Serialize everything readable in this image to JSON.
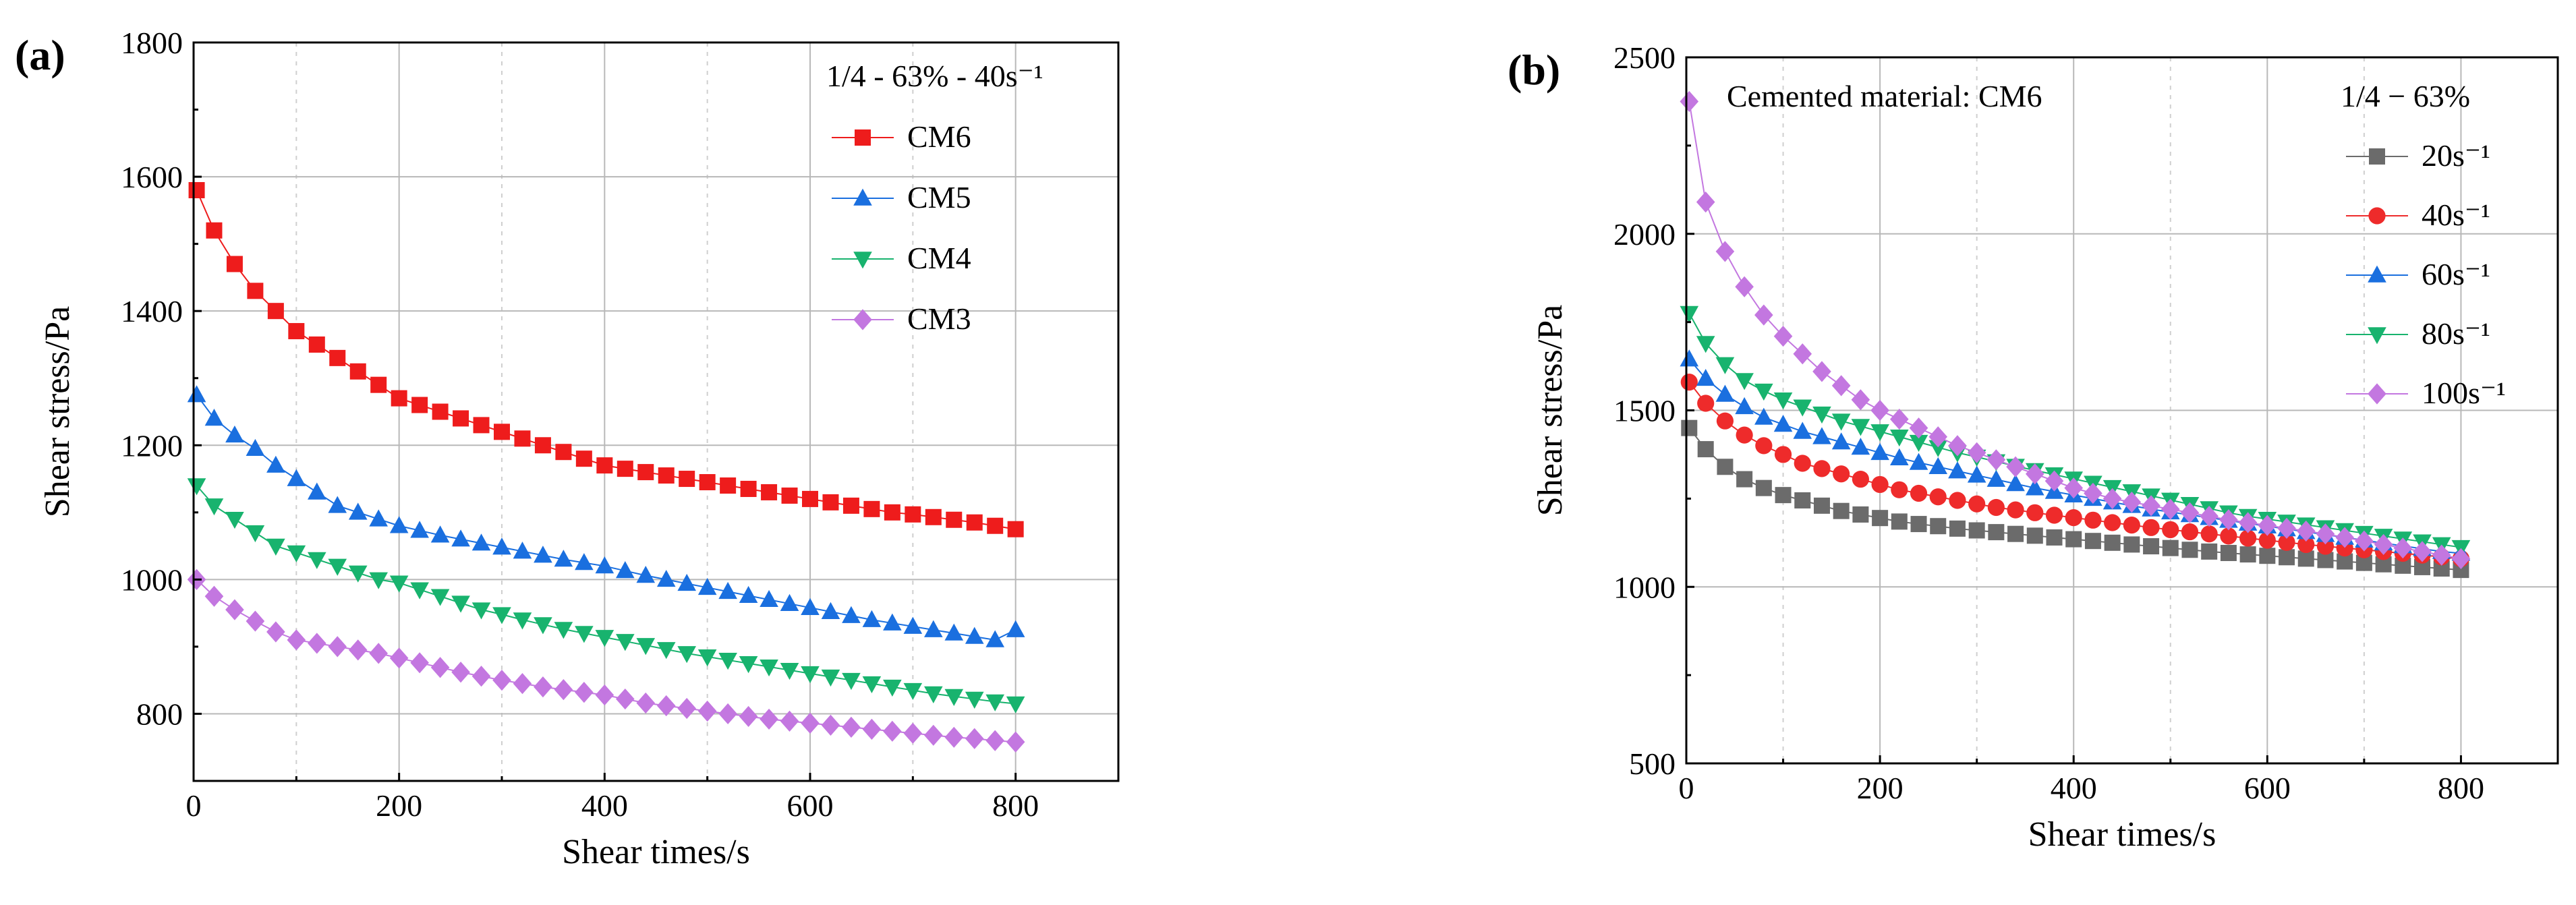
{
  "chart_data": [
    {
      "panel_label": "(a)",
      "type": "line",
      "xlabel": "Shear times/s",
      "ylabel": "Shear stress/Pa",
      "xlim": [
        0,
        900
      ],
      "ylim": [
        700,
        1800
      ],
      "xticks": [
        0,
        200,
        400,
        600,
        800
      ],
      "yticks": [
        800,
        1000,
        1200,
        1400,
        1600,
        1800
      ],
      "grid": true,
      "legend_title": "1/4 - 63% - 40s⁻¹",
      "legend_position": "top-right",
      "x": [
        3,
        20,
        40,
        60,
        80,
        100,
        120,
        140,
        160,
        180,
        200,
        220,
        240,
        260,
        280,
        300,
        320,
        340,
        360,
        380,
        400,
        420,
        440,
        460,
        480,
        500,
        520,
        540,
        560,
        580,
        600,
        620,
        640,
        660,
        680,
        700,
        720,
        740,
        760,
        780,
        800
      ],
      "series": [
        {
          "name": "CM6",
          "color": "#ee1c1c",
          "marker": "square",
          "values": [
            1580,
            1520,
            1470,
            1430,
            1400,
            1370,
            1350,
            1330,
            1310,
            1290,
            1270,
            1260,
            1250,
            1240,
            1230,
            1220,
            1210,
            1200,
            1190,
            1180,
            1170,
            1165,
            1160,
            1155,
            1150,
            1145,
            1140,
            1135,
            1130,
            1125,
            1120,
            1115,
            1110,
            1105,
            1100,
            1097,
            1093,
            1089,
            1085,
            1080,
            1075
          ]
        },
        {
          "name": "CM5",
          "color": "#1a6fdf",
          "marker": "triangle-up",
          "values": [
            1275,
            1240,
            1215,
            1195,
            1170,
            1150,
            1130,
            1110,
            1100,
            1090,
            1080,
            1073,
            1066,
            1060,
            1054,
            1048,
            1042,
            1036,
            1030,
            1025,
            1020,
            1013,
            1006,
            1000,
            994,
            988,
            982,
            976,
            970,
            964,
            958,
            952,
            946,
            940,
            935,
            930,
            925,
            920,
            915,
            910,
            925
          ]
        },
        {
          "name": "CM4",
          "color": "#18b36e",
          "marker": "triangle-down",
          "values": [
            1140,
            1110,
            1090,
            1070,
            1050,
            1040,
            1030,
            1020,
            1010,
            1000,
            995,
            985,
            975,
            965,
            955,
            948,
            940,
            933,
            926,
            920,
            914,
            908,
            902,
            896,
            890,
            885,
            880,
            875,
            870,
            865,
            860,
            855,
            850,
            845,
            840,
            835,
            830,
            826,
            822,
            818,
            815
          ]
        },
        {
          "name": "CM3",
          "color": "#c377e0",
          "marker": "diamond",
          "values": [
            1000,
            975,
            955,
            938,
            922,
            910,
            905,
            900,
            895,
            890,
            883,
            876,
            869,
            862,
            856,
            850,
            845,
            840,
            836,
            832,
            828,
            822,
            816,
            812,
            808,
            804,
            800,
            796,
            792,
            789,
            786,
            783,
            780,
            777,
            774,
            771,
            768,
            765,
            763,
            760,
            758
          ]
        }
      ]
    },
    {
      "panel_label": "(b)",
      "type": "line",
      "xlabel": "Shear times/s",
      "ylabel": "Shear stress/Pa",
      "xlim": [
        0,
        900
      ],
      "ylim": [
        500,
        2500
      ],
      "xticks": [
        0,
        200,
        400,
        600,
        800
      ],
      "yticks": [
        500,
        1000,
        1500,
        2000,
        2500
      ],
      "grid": true,
      "annotation": "Cemented material: CM6",
      "legend_title": "1/4 − 63%",
      "legend_position": "top-right",
      "x": [
        3,
        20,
        40,
        60,
        80,
        100,
        120,
        140,
        160,
        180,
        200,
        220,
        240,
        260,
        280,
        300,
        320,
        340,
        360,
        380,
        400,
        420,
        440,
        460,
        480,
        500,
        520,
        540,
        560,
        580,
        600,
        620,
        640,
        660,
        680,
        700,
        720,
        740,
        760,
        780,
        800
      ],
      "series": [
        {
          "name": "20s⁻¹",
          "color": "#6b6b6b",
          "marker": "square",
          "values": [
            1450,
            1390,
            1340,
            1305,
            1280,
            1260,
            1245,
            1230,
            1215,
            1205,
            1195,
            1185,
            1178,
            1172,
            1165,
            1160,
            1155,
            1150,
            1145,
            1140,
            1135,
            1130,
            1125,
            1120,
            1115,
            1110,
            1105,
            1100,
            1096,
            1092,
            1088,
            1084,
            1080,
            1076,
            1072,
            1068,
            1064,
            1060,
            1056,
            1052,
            1048
          ]
        },
        {
          "name": "40s⁻¹",
          "color": "#ee2b2b",
          "marker": "circle",
          "values": [
            1580,
            1520,
            1470,
            1430,
            1400,
            1375,
            1350,
            1335,
            1320,
            1305,
            1290,
            1275,
            1265,
            1255,
            1245,
            1235,
            1225,
            1218,
            1210,
            1203,
            1196,
            1189,
            1182,
            1175,
            1168,
            1162,
            1156,
            1150,
            1144,
            1138,
            1132,
            1126,
            1120,
            1115,
            1110,
            1105,
            1100,
            1095,
            1090,
            1085,
            1080
          ]
        },
        {
          "name": "60s⁻¹",
          "color": "#1a6fdf",
          "marker": "triangle-up",
          "values": [
            1645,
            1590,
            1545,
            1510,
            1480,
            1460,
            1440,
            1425,
            1410,
            1395,
            1380,
            1365,
            1352,
            1340,
            1328,
            1316,
            1304,
            1292,
            1280,
            1270,
            1260,
            1250,
            1240,
            1230,
            1220,
            1212,
            1204,
            1196,
            1188,
            1180,
            1172,
            1164,
            1156,
            1148,
            1140,
            1132,
            1124,
            1116,
            1108,
            1100,
            1095
          ]
        },
        {
          "name": "80s⁻¹",
          "color": "#18b36e",
          "marker": "triangle-down",
          "values": [
            1775,
            1690,
            1630,
            1585,
            1555,
            1530,
            1510,
            1490,
            1470,
            1455,
            1440,
            1425,
            1410,
            1395,
            1380,
            1368,
            1355,
            1342,
            1330,
            1318,
            1306,
            1294,
            1282,
            1270,
            1258,
            1246,
            1234,
            1222,
            1210,
            1200,
            1192,
            1184,
            1176,
            1168,
            1160,
            1152,
            1144,
            1136,
            1128,
            1120,
            1112
          ]
        },
        {
          "name": "100s⁻¹",
          "color": "#c377e0",
          "marker": "diamond",
          "values": [
            2375,
            2090,
            1950,
            1850,
            1770,
            1710,
            1660,
            1610,
            1570,
            1530,
            1500,
            1475,
            1450,
            1425,
            1400,
            1380,
            1360,
            1340,
            1320,
            1300,
            1280,
            1265,
            1250,
            1240,
            1230,
            1220,
            1210,
            1200,
            1190,
            1182,
            1174,
            1166,
            1158,
            1150,
            1140,
            1130,
            1120,
            1110,
            1100,
            1090,
            1080
          ]
        }
      ]
    }
  ]
}
